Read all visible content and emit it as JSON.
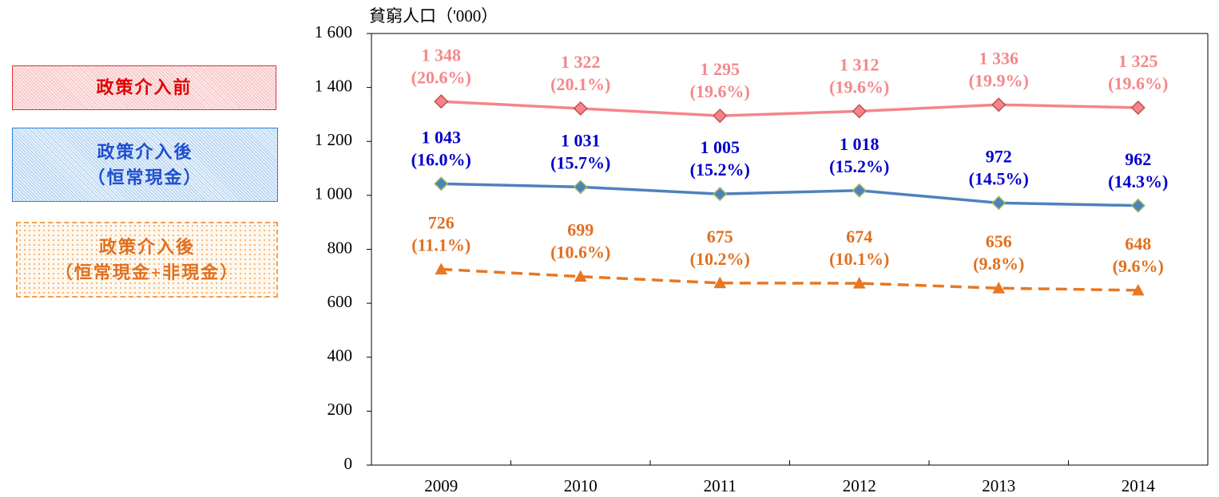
{
  "chart_data": {
    "type": "line",
    "y_axis_title": "貧窮人口（'000）",
    "categories": [
      "2009",
      "2010",
      "2011",
      "2012",
      "2013",
      "2014"
    ],
    "ylim": [
      0,
      1600
    ],
    "yticks": [
      0,
      200,
      400,
      600,
      800,
      {
        "value": 1000,
        "label": "1 000"
      },
      {
        "value": 1200,
        "label": "1 200"
      },
      {
        "value": 1400,
        "label": "1 400"
      },
      {
        "value": 1600,
        "label": "1 600"
      }
    ],
    "series": [
      {
        "name": "政策介入前",
        "color": "#f4858a",
        "marker_color": "#f4858a",
        "marker_edge": "#c0504d",
        "label_color": "#f4878a",
        "marker": "diamond",
        "line_style": "solid",
        "values": [
          1348,
          1322,
          1295,
          1312,
          1336,
          1325
        ],
        "value_labels": [
          "1 348",
          "1 322",
          "1 295",
          "1 312",
          "1 336",
          "1 325"
        ],
        "percent_labels": [
          "(20.6%)",
          "(20.1%)",
          "(19.6%)",
          "(19.6%)",
          "(19.9%)",
          "(19.6%)"
        ]
      },
      {
        "name": "政策介入後\n（恒常現金）",
        "color": "#4f81bd",
        "marker_color": "#4f81bd",
        "marker_edge": "#9bbb59",
        "label_color": "#0000cc",
        "marker": "diamond",
        "line_style": "solid",
        "values": [
          1043,
          1031,
          1005,
          1018,
          972,
          962
        ],
        "value_labels": [
          "1 043",
          "1 031",
          "1 005",
          "1 018",
          "972",
          "962"
        ],
        "percent_labels": [
          "(16.0%)",
          "(15.7%)",
          "(15.2%)",
          "(15.2%)",
          "(14.5%)",
          "(14.3%)"
        ]
      },
      {
        "name": "政策介入後\n（恒常現金+非現金）",
        "color": "#e87722",
        "marker_color": "#e87722",
        "marker_edge": "#e87722",
        "label_color": "#e07020",
        "marker": "triangle",
        "line_style": "dashed",
        "values": [
          726,
          699,
          675,
          674,
          656,
          648
        ],
        "percent_labels": [
          "(11.1%)",
          "(10.6%)",
          "(10.2%)",
          "(10.1%)",
          "(9.8%)",
          "(9.6%)"
        ]
      }
    ]
  }
}
